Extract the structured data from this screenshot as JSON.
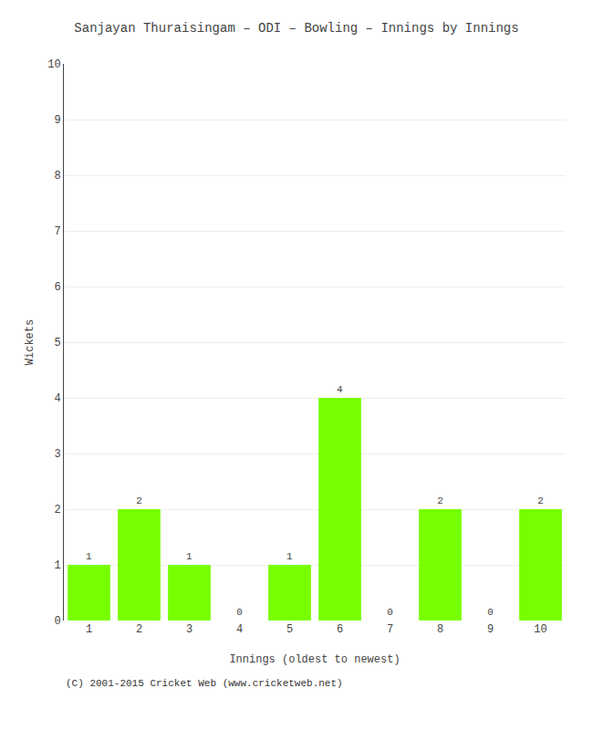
{
  "chart_data": {
    "type": "bar",
    "title": "Sanjayan Thuraisingam – ODI – Bowling – Innings by Innings",
    "x_label": "Innings (oldest to newest)",
    "y_label": "Wickets",
    "categories": [
      "1",
      "2",
      "3",
      "4",
      "5",
      "6",
      "7",
      "8",
      "9",
      "10"
    ],
    "values": [
      1,
      2,
      1,
      0,
      1,
      4,
      0,
      2,
      0,
      2
    ],
    "color": "#77ff00",
    "ylim": [
      0,
      10
    ],
    "yticks": [
      0,
      1,
      2,
      3,
      4,
      5,
      6,
      7,
      8,
      9,
      10
    ],
    "grid": true,
    "data_labels": true,
    "annotations": [
      "(C) 2001-2015 Cricket Web (www.cricketweb.net)"
    ]
  }
}
